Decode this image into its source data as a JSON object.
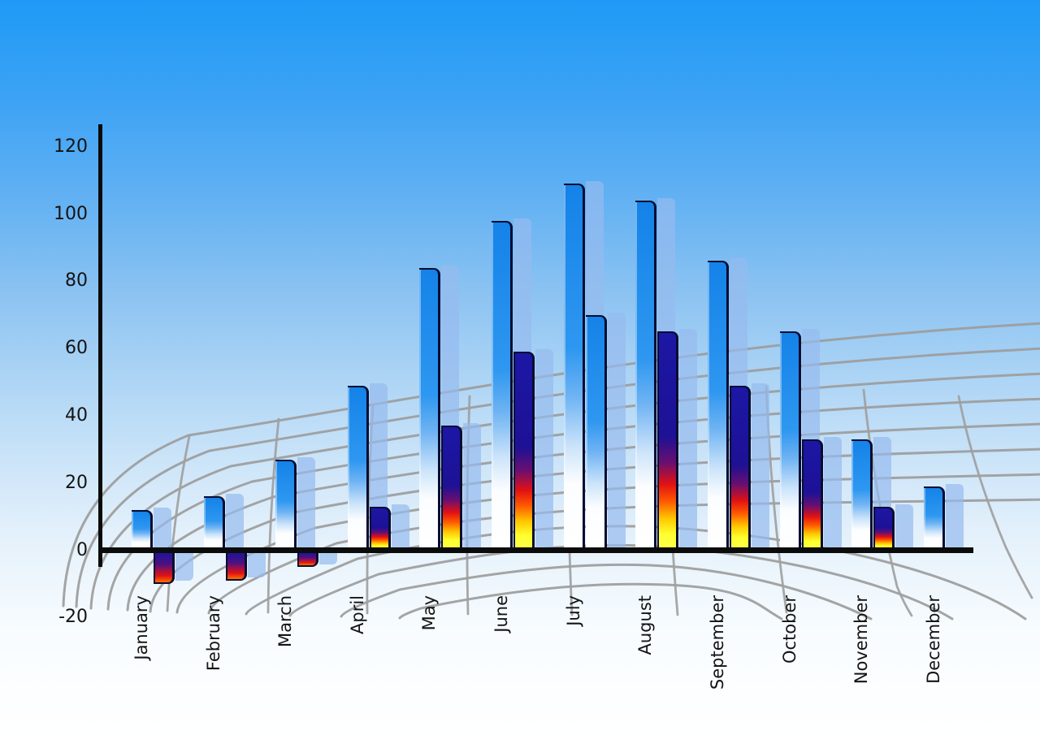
{
  "chart_data": {
    "type": "bar",
    "title": "",
    "xlabel": "",
    "ylabel": "",
    "categories": [
      "January",
      "February",
      "March",
      "April",
      "May",
      "June",
      "July",
      "August",
      "September",
      "October",
      "November",
      "December"
    ],
    "series": [
      {
        "name": "primary-blue-bars",
        "values": [
          12,
          16,
          27,
          49,
          84,
          98,
          109,
          104,
          86,
          65,
          33,
          19
        ]
      },
      {
        "name": "secondary-bars",
        "values": [
          -10,
          -9,
          -5,
          13,
          37,
          59,
          70,
          65,
          49,
          33,
          13,
          null
        ]
      }
    ],
    "secondary_bar_styles": [
      "fire",
      "fire",
      "fire",
      "fire",
      "fire",
      "fire",
      "blue",
      "fire",
      "fire",
      "fire",
      "fire",
      null
    ],
    "y_ticks": [
      120,
      100,
      80,
      60,
      40,
      20,
      0,
      -20
    ],
    "ylim": [
      -20,
      120
    ],
    "legend": "none",
    "grid": "decorative gray perspective wireframe behind bars"
  },
  "colors": {
    "sky_top": "#1e9af6",
    "sky_bottom": "#ffffff",
    "bar_blue_top": "#1482e8",
    "bar_blue_bottom": "#ffffff",
    "fire_navy": "#1c17a5",
    "fire_red": "#e11113",
    "fire_orange": "#ff5a00",
    "fire_yellow": "#ffff4a",
    "bar_shadow_blue": "#96baee",
    "axis_black": "#0b0b0b",
    "grid_gray": "#9c9c9c",
    "label_text": "#141414"
  }
}
